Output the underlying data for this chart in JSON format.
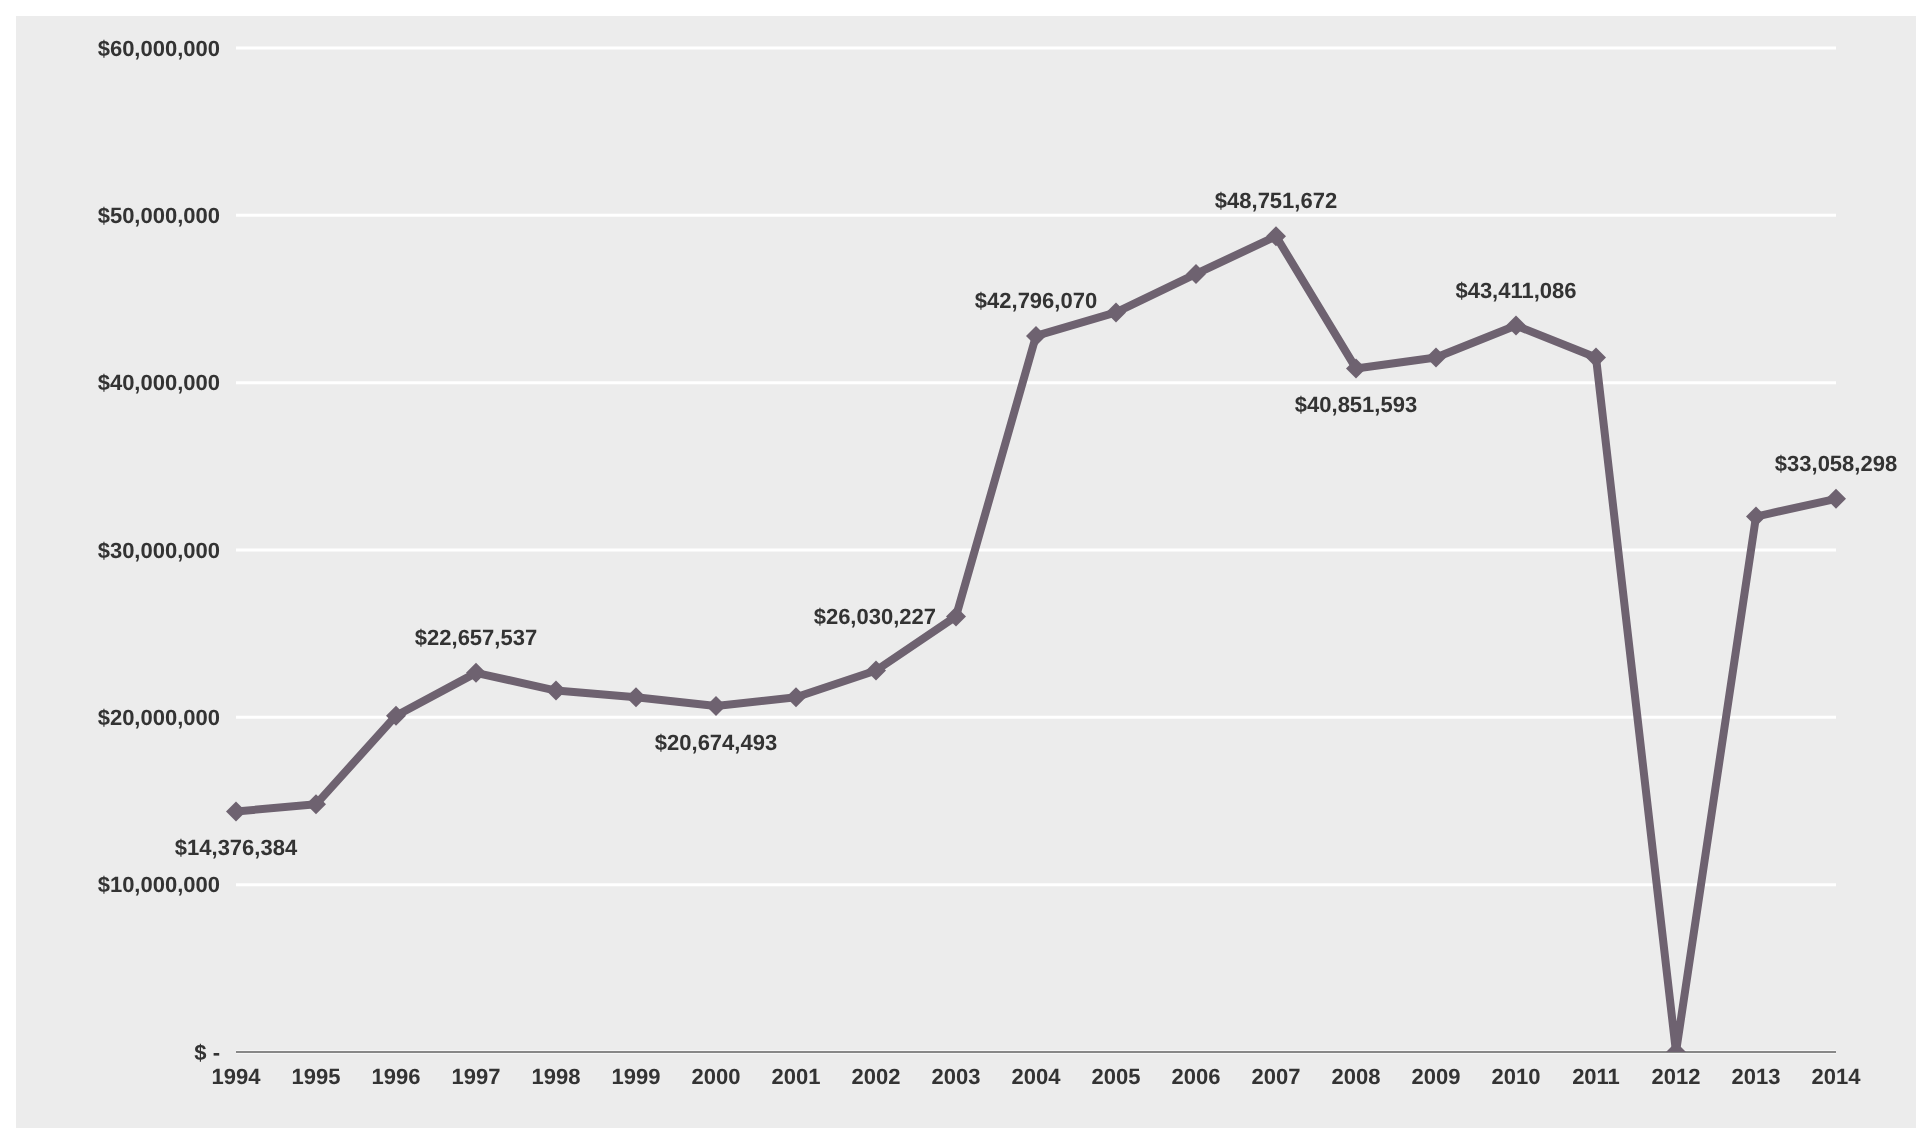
{
  "chart_data": {
    "type": "line",
    "categories": [
      "1994",
      "1995",
      "1996",
      "1997",
      "1998",
      "1999",
      "2000",
      "2001",
      "2002",
      "2003",
      "2004",
      "2005",
      "2006",
      "2007",
      "2008",
      "2009",
      "2010",
      "2011",
      "2012",
      "2013",
      "2014"
    ],
    "series": [
      {
        "color": "#6e6270",
        "values": [
          14376384,
          14800000,
          20100000,
          22657537,
          21600000,
          21200000,
          20674493,
          21200000,
          22800000,
          26030227,
          42796070,
          44200000,
          46500000,
          48751672,
          40851593,
          41500000,
          43411086,
          41500000,
          0,
          32000000,
          33058298
        ],
        "value_labels": [
          "$14,376,384",
          null,
          null,
          "$22,657,537",
          null,
          null,
          "$20,674,493",
          null,
          null,
          "$26,030,227",
          "$42,796,070",
          null,
          null,
          "$48,751,672",
          "$40,851,593",
          null,
          "$43,411,086",
          null,
          null,
          null,
          "$33,058,298"
        ]
      }
    ],
    "ylim": [
      0,
      60000000
    ],
    "yticks": [
      {
        "value": 0,
        "label": "$ -"
      },
      {
        "value": 10000000,
        "label": "$10,000,000"
      },
      {
        "value": 20000000,
        "label": "$20,000,000"
      },
      {
        "value": 30000000,
        "label": "$30,000,000"
      },
      {
        "value": 40000000,
        "label": "$40,000,000"
      },
      {
        "value": 50000000,
        "label": "$50,000,000"
      },
      {
        "value": 60000000,
        "label": "$60,000,000"
      }
    ],
    "grid": "y",
    "marker": "diamond",
    "line_style": "solid"
  }
}
